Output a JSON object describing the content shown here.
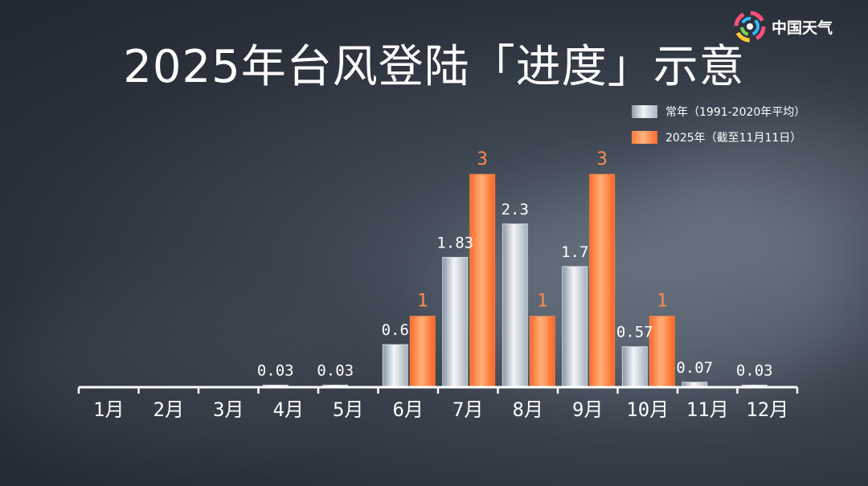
{
  "title": "2025年台风登陆「进度」示意",
  "logo": {
    "text": "中国天气",
    "icon": "china-weather-logo-icon"
  },
  "legend": {
    "normal": "常年（1991-2020年平均）",
    "current": "2025年（截至11月11日）"
  },
  "colors": {
    "normal": "#c4ccd6",
    "current": "#ff7a3a",
    "current_label": "#ff8c50",
    "normal_label": "#ffffff",
    "axis": "#ffffff"
  },
  "chart_data": {
    "type": "bar",
    "categories": [
      "1月",
      "2月",
      "3月",
      "4月",
      "5月",
      "6月",
      "7月",
      "8月",
      "9月",
      "10月",
      "11月",
      "12月"
    ],
    "series": [
      {
        "name": "常年（1991-2020年平均）",
        "values": [
          null,
          null,
          null,
          0.03,
          0.03,
          0.6,
          1.83,
          2.3,
          1.7,
          0.57,
          0.07,
          0.03
        ],
        "labels": [
          "",
          "",
          "",
          "0.03",
          "0.03",
          "0.6",
          "1.83",
          "2.3",
          "1.7",
          "0.57",
          "0.07",
          "0.03"
        ]
      },
      {
        "name": "2025年（截至11月11日）",
        "values": [
          null,
          null,
          null,
          null,
          null,
          1,
          3,
          1,
          3,
          1,
          null,
          null
        ],
        "labels": [
          "",
          "",
          "",
          "",
          "",
          "1",
          "3",
          "1",
          "3",
          "1",
          "",
          ""
        ]
      }
    ],
    "ylim": [
      0,
      3
    ],
    "legend_position": "top-right",
    "grid": false
  }
}
